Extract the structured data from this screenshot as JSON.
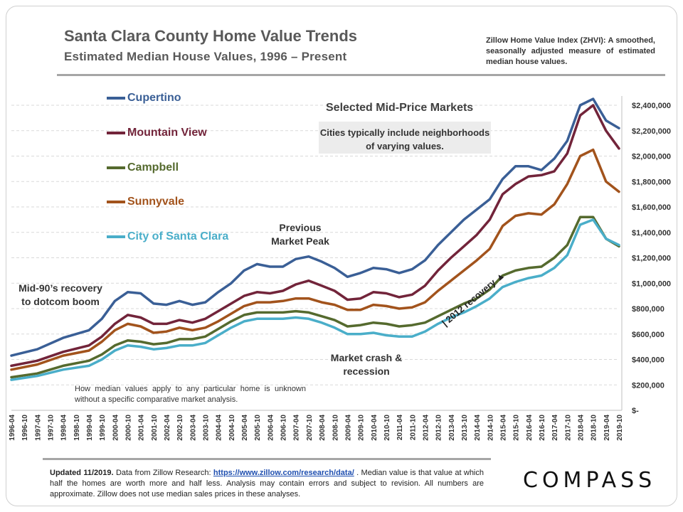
{
  "title": "Santa Clara County Home Value Trends",
  "subtitle": "Estimated Median House Values, 1996 – Present",
  "zhvi_note": "Zillow Home Value Index (ZHVI): A smoothed, seasonally adjusted measure of estimated median house values.",
  "mid_price_title": "Selected Mid-Price Markets",
  "cities_note": "Cities typically include neighborhoods of varying values.",
  "annotations": {
    "mid90s": "Mid-90’s recovery to dotcom boom",
    "previous_peak": "Previous Market Peak",
    "crash": "Market crash & recession",
    "recovery_2012": "| 2012 recovery ▲"
  },
  "home_note": "How median values apply to any particular home is unknown without a specific comparative market analysis.",
  "footer": {
    "updated": "Updated 11/2019.",
    "text1": " Data from Zillow Research: ",
    "link": "https://www.zillow.com/research/data/",
    "text2": " . Median value is that value at which half the homes are worth more and half less. Analysis may contain errors and subject to revision. All numbers are approximate. Zillow does not use median sales prices in these analyses."
  },
  "brand": "COMPASS",
  "colors": {
    "Cupertino": "#3a5f96",
    "Mountain View": "#72243a",
    "Campbell": "#556a2e",
    "Sunnyvale": "#a2531c",
    "City of Santa Clara": "#4aaec9"
  },
  "chart_data": {
    "type": "line",
    "y_axis_position": "right",
    "ylim": [
      0,
      2400000
    ],
    "yticks": [
      "$-",
      "$200,000",
      "$400,000",
      "$600,000",
      "$800,000",
      "$1,000,000",
      "$1,200,000",
      "$1,400,000",
      "$1,600,000",
      "$1,800,000",
      "$2,000,000",
      "$2,200,000",
      "$2,400,000"
    ],
    "x_tick_labels": [
      "1996-04",
      "1996-10",
      "1997-04",
      "1997-10",
      "1998-04",
      "1998-10",
      "1999-04",
      "1999-10",
      "2000-04",
      "2000-10",
      "2001-04",
      "2001-10",
      "2002-04",
      "2002-10",
      "2003-04",
      "2003-10",
      "2004-04",
      "2004-10",
      "2005-04",
      "2005-10",
      "2006-04",
      "2006-10",
      "2007-04",
      "2007-10",
      "2008-04",
      "2008-10",
      "2009-04",
      "2009-10",
      "2010-04",
      "2010-10",
      "2011-04",
      "2011-10",
      "2012-04",
      "2012-10",
      "2013-04",
      "2013-10",
      "2014-04",
      "2014-10",
      "2015-04",
      "2015-10",
      "2016-04",
      "2016-10",
      "2017-04",
      "2017-10",
      "2018-04",
      "2018-10",
      "2019-04",
      "2019-10"
    ],
    "x_range": [
      "1996-04",
      "2019-10"
    ],
    "grid": "dashed horizontal",
    "legend_position": "left",
    "series": [
      {
        "name": "Cupertino",
        "points": [
          [
            "1996-04",
            430000
          ],
          [
            "1997-04",
            480000
          ],
          [
            "1998-04",
            570000
          ],
          [
            "1999-04",
            630000
          ],
          [
            "1999-10",
            720000
          ],
          [
            "2000-04",
            860000
          ],
          [
            "2000-10",
            930000
          ],
          [
            "2001-04",
            920000
          ],
          [
            "2001-10",
            840000
          ],
          [
            "2002-04",
            830000
          ],
          [
            "2002-10",
            860000
          ],
          [
            "2003-04",
            830000
          ],
          [
            "2003-10",
            850000
          ],
          [
            "2004-04",
            930000
          ],
          [
            "2004-10",
            1000000
          ],
          [
            "2005-04",
            1100000
          ],
          [
            "2005-10",
            1150000
          ],
          [
            "2006-04",
            1130000
          ],
          [
            "2006-10",
            1130000
          ],
          [
            "2007-04",
            1190000
          ],
          [
            "2007-10",
            1210000
          ],
          [
            "2008-04",
            1170000
          ],
          [
            "2008-10",
            1120000
          ],
          [
            "2009-04",
            1050000
          ],
          [
            "2009-10",
            1080000
          ],
          [
            "2010-04",
            1120000
          ],
          [
            "2010-10",
            1110000
          ],
          [
            "2011-04",
            1080000
          ],
          [
            "2011-10",
            1110000
          ],
          [
            "2012-04",
            1180000
          ],
          [
            "2012-10",
            1300000
          ],
          [
            "2013-04",
            1400000
          ],
          [
            "2013-10",
            1500000
          ],
          [
            "2014-04",
            1580000
          ],
          [
            "2014-10",
            1660000
          ],
          [
            "2015-04",
            1820000
          ],
          [
            "2015-10",
            1920000
          ],
          [
            "2016-04",
            1920000
          ],
          [
            "2016-10",
            1890000
          ],
          [
            "2017-04",
            1980000
          ],
          [
            "2017-10",
            2120000
          ],
          [
            "2018-04",
            2400000
          ],
          [
            "2018-10",
            2450000
          ],
          [
            "2019-04",
            2280000
          ],
          [
            "2019-10",
            2220000
          ]
        ]
      },
      {
        "name": "Mountain View",
        "points": [
          [
            "1996-04",
            350000
          ],
          [
            "1997-04",
            390000
          ],
          [
            "1998-04",
            460000
          ],
          [
            "1999-04",
            510000
          ],
          [
            "1999-10",
            580000
          ],
          [
            "2000-04",
            680000
          ],
          [
            "2000-10",
            750000
          ],
          [
            "2001-04",
            730000
          ],
          [
            "2001-10",
            680000
          ],
          [
            "2002-04",
            680000
          ],
          [
            "2002-10",
            710000
          ],
          [
            "2003-04",
            690000
          ],
          [
            "2003-10",
            720000
          ],
          [
            "2004-04",
            780000
          ],
          [
            "2004-10",
            840000
          ],
          [
            "2005-04",
            900000
          ],
          [
            "2005-10",
            930000
          ],
          [
            "2006-04",
            920000
          ],
          [
            "2006-10",
            940000
          ],
          [
            "2007-04",
            990000
          ],
          [
            "2007-10",
            1020000
          ],
          [
            "2008-04",
            980000
          ],
          [
            "2008-10",
            940000
          ],
          [
            "2009-04",
            870000
          ],
          [
            "2009-10",
            880000
          ],
          [
            "2010-04",
            930000
          ],
          [
            "2010-10",
            920000
          ],
          [
            "2011-04",
            890000
          ],
          [
            "2011-10",
            910000
          ],
          [
            "2012-04",
            980000
          ],
          [
            "2012-10",
            1100000
          ],
          [
            "2013-04",
            1200000
          ],
          [
            "2013-10",
            1290000
          ],
          [
            "2014-04",
            1380000
          ],
          [
            "2014-10",
            1500000
          ],
          [
            "2015-04",
            1700000
          ],
          [
            "2015-10",
            1780000
          ],
          [
            "2016-04",
            1840000
          ],
          [
            "2016-10",
            1850000
          ],
          [
            "2017-04",
            1880000
          ],
          [
            "2017-10",
            2020000
          ],
          [
            "2018-04",
            2320000
          ],
          [
            "2018-10",
            2400000
          ],
          [
            "2019-04",
            2200000
          ],
          [
            "2019-10",
            2060000
          ]
        ]
      },
      {
        "name": "Sunnyvale",
        "points": [
          [
            "1996-04",
            320000
          ],
          [
            "1997-04",
            360000
          ],
          [
            "1998-04",
            430000
          ],
          [
            "1999-04",
            470000
          ],
          [
            "1999-10",
            540000
          ],
          [
            "2000-04",
            630000
          ],
          [
            "2000-10",
            680000
          ],
          [
            "2001-04",
            660000
          ],
          [
            "2001-10",
            610000
          ],
          [
            "2002-04",
            620000
          ],
          [
            "2002-10",
            650000
          ],
          [
            "2003-04",
            630000
          ],
          [
            "2003-10",
            650000
          ],
          [
            "2004-04",
            700000
          ],
          [
            "2004-10",
            760000
          ],
          [
            "2005-04",
            820000
          ],
          [
            "2005-10",
            850000
          ],
          [
            "2006-04",
            850000
          ],
          [
            "2006-10",
            860000
          ],
          [
            "2007-04",
            880000
          ],
          [
            "2007-10",
            880000
          ],
          [
            "2008-04",
            850000
          ],
          [
            "2008-10",
            830000
          ],
          [
            "2009-04",
            790000
          ],
          [
            "2009-10",
            790000
          ],
          [
            "2010-04",
            830000
          ],
          [
            "2010-10",
            820000
          ],
          [
            "2011-04",
            800000
          ],
          [
            "2011-10",
            810000
          ],
          [
            "2012-04",
            850000
          ],
          [
            "2012-10",
            940000
          ],
          [
            "2013-04",
            1020000
          ],
          [
            "2013-10",
            1100000
          ],
          [
            "2014-04",
            1180000
          ],
          [
            "2014-10",
            1270000
          ],
          [
            "2015-04",
            1450000
          ],
          [
            "2015-10",
            1530000
          ],
          [
            "2016-04",
            1550000
          ],
          [
            "2016-10",
            1540000
          ],
          [
            "2017-04",
            1620000
          ],
          [
            "2017-10",
            1780000
          ],
          [
            "2018-04",
            2000000
          ],
          [
            "2018-10",
            2050000
          ],
          [
            "2019-04",
            1800000
          ],
          [
            "2019-10",
            1720000
          ]
        ]
      },
      {
        "name": "Campbell",
        "points": [
          [
            "1996-04",
            260000
          ],
          [
            "1997-04",
            290000
          ],
          [
            "1998-04",
            350000
          ],
          [
            "1999-04",
            390000
          ],
          [
            "1999-10",
            440000
          ],
          [
            "2000-04",
            510000
          ],
          [
            "2000-10",
            550000
          ],
          [
            "2001-04",
            540000
          ],
          [
            "2001-10",
            520000
          ],
          [
            "2002-04",
            530000
          ],
          [
            "2002-10",
            560000
          ],
          [
            "2003-04",
            560000
          ],
          [
            "2003-10",
            580000
          ],
          [
            "2004-04",
            640000
          ],
          [
            "2004-10",
            700000
          ],
          [
            "2005-04",
            750000
          ],
          [
            "2005-10",
            770000
          ],
          [
            "2006-04",
            770000
          ],
          [
            "2006-10",
            770000
          ],
          [
            "2007-04",
            780000
          ],
          [
            "2007-10",
            770000
          ],
          [
            "2008-04",
            740000
          ],
          [
            "2008-10",
            710000
          ],
          [
            "2009-04",
            660000
          ],
          [
            "2009-10",
            670000
          ],
          [
            "2010-04",
            690000
          ],
          [
            "2010-10",
            680000
          ],
          [
            "2011-04",
            660000
          ],
          [
            "2011-10",
            670000
          ],
          [
            "2012-04",
            690000
          ],
          [
            "2012-10",
            740000
          ],
          [
            "2013-04",
            790000
          ],
          [
            "2013-10",
            840000
          ],
          [
            "2014-04",
            880000
          ],
          [
            "2014-10",
            950000
          ],
          [
            "2015-04",
            1060000
          ],
          [
            "2015-10",
            1100000
          ],
          [
            "2016-04",
            1120000
          ],
          [
            "2016-10",
            1130000
          ],
          [
            "2017-04",
            1200000
          ],
          [
            "2017-10",
            1300000
          ],
          [
            "2018-04",
            1520000
          ],
          [
            "2018-10",
            1520000
          ],
          [
            "2019-04",
            1350000
          ],
          [
            "2019-10",
            1290000
          ]
        ]
      },
      {
        "name": "City of Santa Clara",
        "points": [
          [
            "1996-04",
            240000
          ],
          [
            "1997-04",
            270000
          ],
          [
            "1998-04",
            320000
          ],
          [
            "1999-04",
            350000
          ],
          [
            "1999-10",
            400000
          ],
          [
            "2000-04",
            470000
          ],
          [
            "2000-10",
            510000
          ],
          [
            "2001-04",
            500000
          ],
          [
            "2001-10",
            480000
          ],
          [
            "2002-04",
            490000
          ],
          [
            "2002-10",
            510000
          ],
          [
            "2003-04",
            510000
          ],
          [
            "2003-10",
            530000
          ],
          [
            "2004-04",
            590000
          ],
          [
            "2004-10",
            650000
          ],
          [
            "2005-04",
            700000
          ],
          [
            "2005-10",
            720000
          ],
          [
            "2006-04",
            720000
          ],
          [
            "2006-10",
            720000
          ],
          [
            "2007-04",
            730000
          ],
          [
            "2007-10",
            720000
          ],
          [
            "2008-04",
            690000
          ],
          [
            "2008-10",
            650000
          ],
          [
            "2009-04",
            600000
          ],
          [
            "2009-10",
            600000
          ],
          [
            "2010-04",
            610000
          ],
          [
            "2010-10",
            590000
          ],
          [
            "2011-04",
            580000
          ],
          [
            "2011-10",
            580000
          ],
          [
            "2012-04",
            620000
          ],
          [
            "2012-10",
            680000
          ],
          [
            "2013-04",
            730000
          ],
          [
            "2013-10",
            770000
          ],
          [
            "2014-04",
            820000
          ],
          [
            "2014-10",
            880000
          ],
          [
            "2015-04",
            970000
          ],
          [
            "2015-10",
            1010000
          ],
          [
            "2016-04",
            1040000
          ],
          [
            "2016-10",
            1060000
          ],
          [
            "2017-04",
            1120000
          ],
          [
            "2017-10",
            1220000
          ],
          [
            "2018-04",
            1460000
          ],
          [
            "2018-10",
            1500000
          ],
          [
            "2019-04",
            1350000
          ],
          [
            "2019-10",
            1300000
          ]
        ]
      }
    ]
  }
}
